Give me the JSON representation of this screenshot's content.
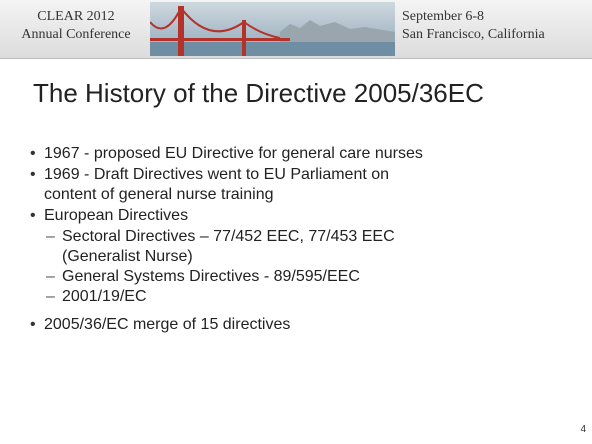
{
  "header": {
    "left": [
      "CLEAR 2012",
      "Annual Conference"
    ],
    "right": [
      "September 6-8",
      "San Francisco, California"
    ]
  },
  "title": "The History of the Directive 2005/36EC",
  "bullets": [
    {
      "lines": [
        "1967 - proposed EU Directive for general care nurses"
      ],
      "sub": []
    },
    {
      "lines": [
        "1969 - Draft Directives went to EU Parliament on",
        "content of general nurse training"
      ],
      "sub": []
    },
    {
      "lines": [
        "European Directives"
      ],
      "sub": [
        {
          "lines": [
            "Sectoral Directives – 77/452 EEC, 77/453 EEC",
            "(Generalist Nurse)"
          ]
        },
        {
          "lines": [
            "General Systems Directives - 89/595/EEC"
          ]
        },
        {
          "lines": [
            "2001/19/EC"
          ]
        }
      ]
    },
    {
      "lines": [
        "2005/36/EC merge of 15 directives"
      ],
      "sub": []
    }
  ],
  "page_number": "4"
}
